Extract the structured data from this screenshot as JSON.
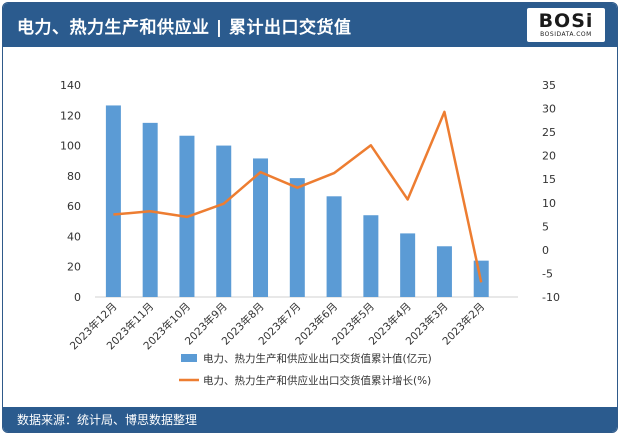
{
  "header": {
    "title": "电力、热力生产和供应业 | 累计出口交货值",
    "logo_text": "BOSi",
    "logo_sub": "BOSIDATA.COM"
  },
  "footer": {
    "source": "数据来源：统计局、博思数据整理"
  },
  "colors": {
    "header_bg": "#2b5b8e",
    "bar": "#5b9bd5",
    "line": "#ed7d31"
  },
  "chart_data": {
    "type": "bar",
    "categories": [
      "2023年12月",
      "2023年11月",
      "2023年10月",
      "2023年9月",
      "2023年8月",
      "2023年7月",
      "2023年6月",
      "2023年5月",
      "2023年4月",
      "2023年3月",
      "2023年2月"
    ],
    "series": [
      {
        "name": "电力、热力生产和供应业出口交货值累计值(亿元)",
        "type": "bar",
        "axis": "left",
        "values": [
          126.5,
          115,
          106.5,
          100,
          91.5,
          78.5,
          66.5,
          54,
          42,
          33.5,
          24
        ]
      },
      {
        "name": "电力、热力生产和供应业出口交货值累计增长(%)",
        "type": "line",
        "axis": "right",
        "values": [
          7.5,
          8.2,
          7,
          9.8,
          16.5,
          13.2,
          16.3,
          22.2,
          10.7,
          29.3,
          -6.9
        ]
      }
    ],
    "y_left": {
      "ylim": [
        0,
        140
      ],
      "ticks": [
        0,
        20,
        40,
        60,
        80,
        100,
        120,
        140
      ]
    },
    "y_right": {
      "ylim": [
        -10,
        35
      ],
      "ticks": [
        -10,
        -5,
        0,
        5,
        10,
        15,
        20,
        25,
        30,
        35
      ]
    },
    "grid": false,
    "legend_position": "bottom"
  }
}
